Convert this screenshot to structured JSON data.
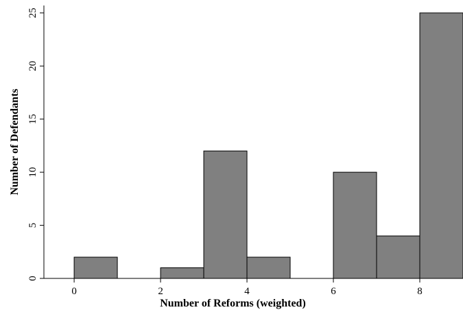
{
  "chart_data": {
    "type": "bar",
    "title": "",
    "xlabel": "Number of Reforms (weighted)",
    "ylabel": "Number of Defendants",
    "xlim": [
      -0.7,
      9
    ],
    "ylim": [
      0,
      25.7
    ],
    "xticks": [
      0,
      2,
      4,
      6,
      8
    ],
    "yticks": [
      0,
      5,
      10,
      15,
      20,
      25
    ],
    "bins": [
      {
        "start": 0,
        "end": 1,
        "value": 2
      },
      {
        "start": 2,
        "end": 3,
        "value": 1
      },
      {
        "start": 3,
        "end": 4,
        "value": 12
      },
      {
        "start": 4,
        "end": 5,
        "value": 2
      },
      {
        "start": 6,
        "end": 7,
        "value": 10
      },
      {
        "start": 7,
        "end": 8,
        "value": 4
      },
      {
        "start": 8,
        "end": 9,
        "value": 25
      }
    ],
    "bar_color": "#808080",
    "grid": false,
    "legend": "none"
  }
}
